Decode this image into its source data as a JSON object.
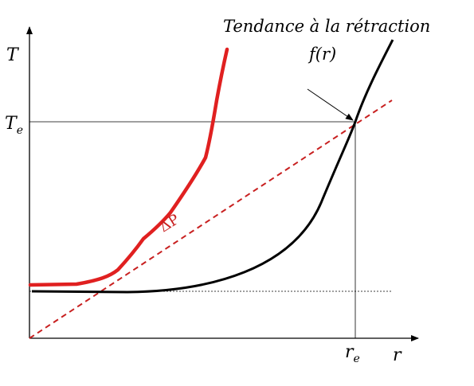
{
  "axes": {
    "y_label": "T",
    "x_label": "r",
    "y_tick": {
      "base": "T",
      "sub": "e"
    },
    "x_tick": {
      "base": "r",
      "sub": "e"
    }
  },
  "annotations": {
    "tendency_title": "Tendance à la rétraction",
    "tendency_function": "f(r)",
    "delta_p": "ΔP"
  },
  "colors": {
    "axis": "#000000",
    "curve": "#000000",
    "red_curve": "#e02020",
    "dashed_line": "#c82020",
    "guide": "#000000",
    "label_red": "#c82020"
  }
}
